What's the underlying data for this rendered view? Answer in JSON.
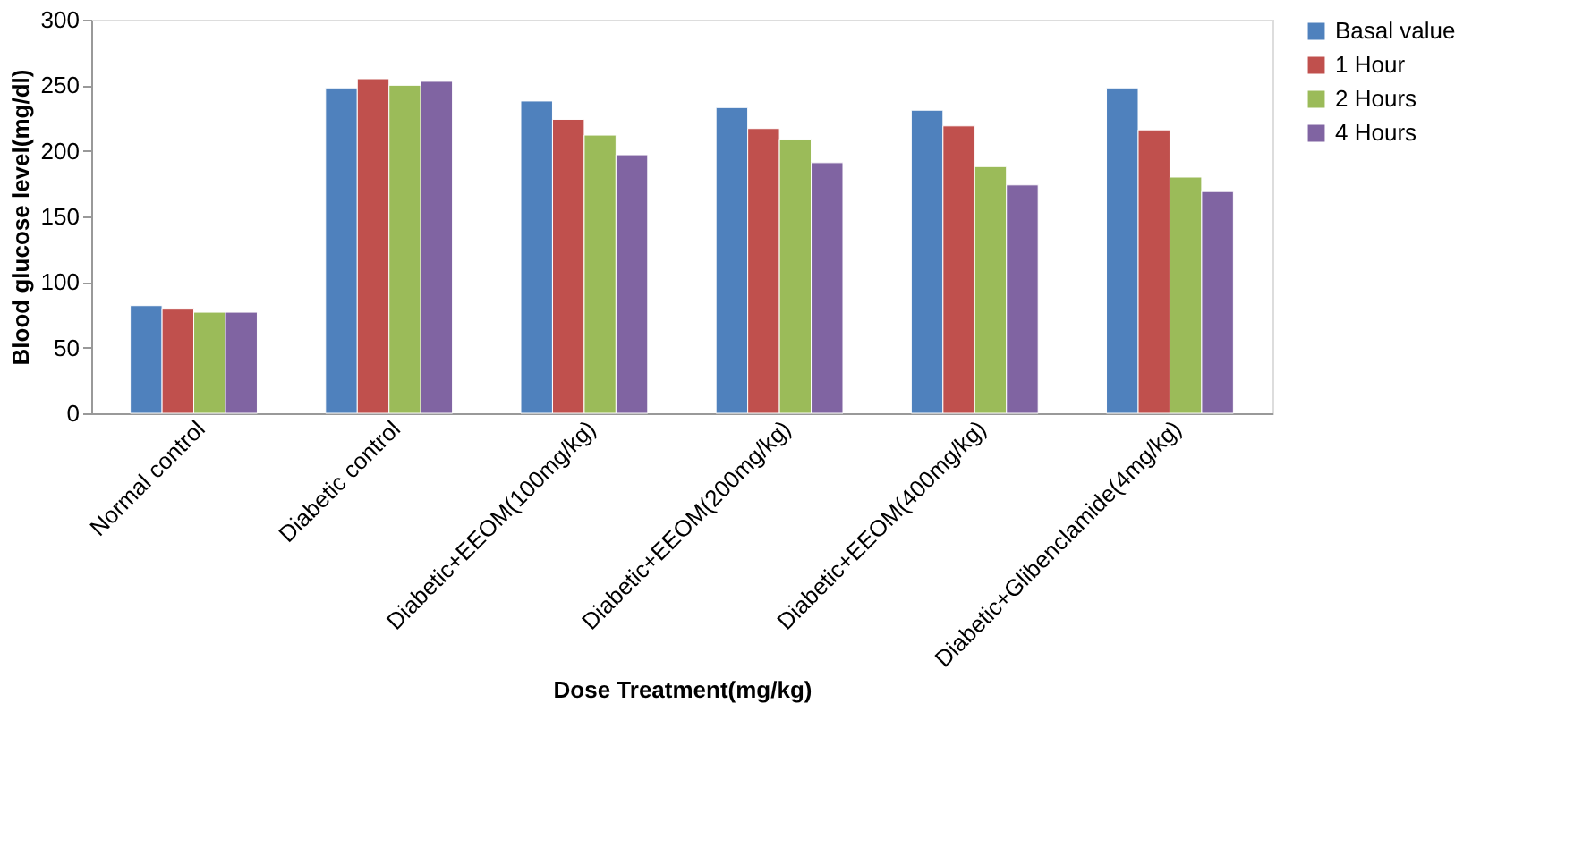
{
  "chart_data": {
    "type": "bar",
    "xlabel": "Dose Treatment(mg/kg)",
    "ylabel": "Blood glucose level(mg/dl)",
    "categories": [
      "Normal control",
      "Diabetic control",
      "Diabetic+EEOM(100mg/kg)",
      "Diabetic+EEOM(200mg/kg)",
      "Diabetic+EEOM(400mg/kg)",
      "Diabetic+Glibenclamide(4mg/kg)"
    ],
    "series": [
      {
        "name": "Basal value",
        "color": "#4f81bd",
        "values": [
          82,
          248,
          238,
          233,
          231,
          248
        ]
      },
      {
        "name": "1 Hour",
        "color": "#c0504d",
        "values": [
          80,
          255,
          224,
          217,
          219,
          216
        ]
      },
      {
        "name": "2 Hours",
        "color": "#9bbb59",
        "values": [
          77,
          250,
          212,
          209,
          188,
          180
        ]
      },
      {
        "name": "4 Hours",
        "color": "#8064a2",
        "values": [
          77,
          253,
          197,
          191,
          174,
          169
        ]
      }
    ],
    "ylim": [
      0,
      300
    ],
    "yticks": [
      0,
      50,
      100,
      150,
      200,
      250,
      300
    ],
    "grid": false,
    "legend": "right"
  }
}
